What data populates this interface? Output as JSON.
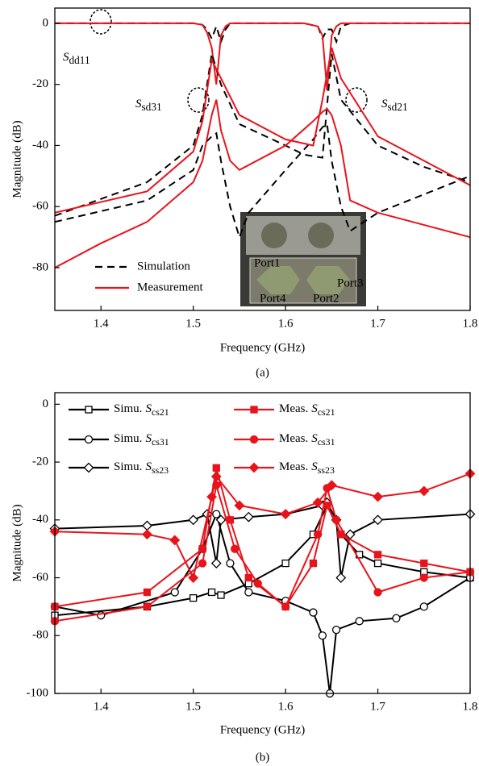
{
  "chart_data": [
    {
      "type": "line",
      "caption": "(a)",
      "x_label": "Frequency (GHz)",
      "y_label": "Magnitude (dB)",
      "xlim": [
        1.35,
        1.8
      ],
      "ylim": [
        -94,
        5
      ],
      "xticks": [
        1.4,
        1.5,
        1.6,
        1.7,
        1.8
      ],
      "yticks": [
        0,
        -20,
        -40,
        -60,
        -80
      ],
      "legend": [
        {
          "label": "Simulation",
          "color": "#000000",
          "dash": true
        },
        {
          "label": "Measurement",
          "color": "#e8131b",
          "dash": false
        }
      ],
      "annotations": [
        {
          "symbol": "S",
          "subscript": "dd11"
        },
        {
          "symbol": "S",
          "subscript": "sd31"
        },
        {
          "symbol": "S",
          "subscript": "sd21"
        }
      ],
      "inset_labels": [
        "Port1",
        "Port2",
        "Port3",
        "Port4"
      ],
      "series": [
        {
          "color": "#000000",
          "dash": true,
          "x": [
            1.35,
            1.5,
            1.51,
            1.515,
            1.52,
            1.525,
            1.53,
            1.535,
            1.54,
            1.62,
            1.635,
            1.64,
            1.645,
            1.65,
            1.655,
            1.66,
            1.67,
            1.8
          ],
          "values": [
            0,
            0,
            -0.5,
            -2,
            -5,
            -1,
            -6,
            -2,
            0,
            0,
            -1,
            -5,
            -2,
            -2,
            -6,
            -1,
            0,
            0
          ]
        },
        {
          "color": "#e8131b",
          "dash": false,
          "x": [
            1.35,
            1.5,
            1.51,
            1.515,
            1.52,
            1.525,
            1.53,
            1.535,
            1.54,
            1.62,
            1.635,
            1.64,
            1.645,
            1.65,
            1.655,
            1.66,
            1.8
          ],
          "values": [
            0,
            0,
            -0.5,
            -3,
            -8,
            -20,
            -4,
            -1,
            0,
            0,
            -1,
            -4,
            -22,
            -4,
            -1,
            0,
            0
          ]
        },
        {
          "color": "#000000",
          "dash": true,
          "x": [
            1.35,
            1.45,
            1.5,
            1.51,
            1.52,
            1.525,
            1.53,
            1.54,
            1.55,
            1.56,
            1.6,
            1.63,
            1.64,
            1.645,
            1.65,
            1.66,
            1.67,
            1.7,
            1.8
          ],
          "values": [
            -65,
            -58,
            -48,
            -40,
            -37,
            -36,
            -45,
            -60,
            -70,
            -62,
            -48,
            -38,
            -34,
            -33,
            -45,
            -60,
            -68,
            -62,
            -50
          ]
        },
        {
          "color": "#000000",
          "dash": true,
          "x": [
            1.35,
            1.45,
            1.5,
            1.51,
            1.515,
            1.52,
            1.53,
            1.55,
            1.6,
            1.62,
            1.64,
            1.65,
            1.66,
            1.7,
            1.75,
            1.8
          ],
          "values": [
            -63,
            -52,
            -40,
            -30,
            -20,
            -10,
            -20,
            -33,
            -40,
            -43,
            -44,
            -10,
            -25,
            -40,
            -47,
            -52
          ]
        },
        {
          "color": "#e8131b",
          "dash": false,
          "x": [
            1.35,
            1.4,
            1.45,
            1.5,
            1.51,
            1.52,
            1.525,
            1.53,
            1.54,
            1.55,
            1.6,
            1.63,
            1.64,
            1.645,
            1.65,
            1.66,
            1.67,
            1.7,
            1.8
          ],
          "values": [
            -80,
            -72,
            -65,
            -52,
            -45,
            -30,
            -25,
            -35,
            -45,
            -48,
            -40,
            -32,
            -29,
            -28,
            -30,
            -40,
            -58,
            -62,
            -70
          ]
        },
        {
          "color": "#e8131b",
          "dash": false,
          "x": [
            1.35,
            1.45,
            1.5,
            1.51,
            1.515,
            1.52,
            1.53,
            1.55,
            1.6,
            1.63,
            1.64,
            1.65,
            1.66,
            1.7,
            1.75,
            1.8
          ],
          "values": [
            -62,
            -55,
            -42,
            -32,
            -22,
            -12,
            -18,
            -30,
            -38,
            -40,
            -25,
            -8,
            -18,
            -37,
            -45,
            -53
          ]
        }
      ]
    },
    {
      "type": "line",
      "caption": "(b)",
      "x_label": "Frequency (GHz)",
      "y_label": "Magnitude (dB)",
      "xlim": [
        1.35,
        1.8
      ],
      "ylim": [
        -100,
        4
      ],
      "xticks": [
        1.4,
        1.5,
        1.6,
        1.7,
        1.8
      ],
      "yticks": [
        0,
        -20,
        -40,
        -60,
        -80,
        -100
      ],
      "series": [
        {
          "label": "Simu.",
          "symbol": "S",
          "subscript": "cs21",
          "color": "#000000",
          "marker": "square",
          "filled": false,
          "x": [
            1.35,
            1.45,
            1.5,
            1.52,
            1.53,
            1.56,
            1.6,
            1.63,
            1.645,
            1.66,
            1.68,
            1.7,
            1.75,
            1.8
          ],
          "values": [
            -73,
            -70,
            -67,
            -65,
            -66,
            -62,
            -55,
            -45,
            -35,
            -45,
            -52,
            -55,
            -58,
            -60
          ]
        },
        {
          "label": "Simu.",
          "symbol": "S",
          "subscript": "cs31",
          "color": "#000000",
          "marker": "circle",
          "filled": false,
          "x": [
            1.35,
            1.4,
            1.48,
            1.51,
            1.525,
            1.54,
            1.56,
            1.6,
            1.63,
            1.64,
            1.648,
            1.655,
            1.68,
            1.72,
            1.75,
            1.8
          ],
          "values": [
            -70,
            -73,
            -65,
            -50,
            -38,
            -55,
            -65,
            -68,
            -72,
            -80,
            -100,
            -78,
            -75,
            -74,
            -70,
            -60
          ]
        },
        {
          "label": "Simu.",
          "symbol": "S",
          "subscript": "ss23",
          "color": "#000000",
          "marker": "diamond",
          "filled": false,
          "x": [
            1.35,
            1.45,
            1.5,
            1.515,
            1.525,
            1.53,
            1.56,
            1.6,
            1.64,
            1.645,
            1.655,
            1.66,
            1.67,
            1.7,
            1.8
          ],
          "values": [
            -43,
            -42,
            -40,
            -38,
            -55,
            -40,
            -39,
            -38,
            -35,
            -34,
            -40,
            -60,
            -45,
            -40,
            -38
          ]
        },
        {
          "label": "Meas.",
          "symbol": "S",
          "subscript": "cs21",
          "color": "#e8131b",
          "marker": "square",
          "filled": true,
          "x": [
            1.35,
            1.45,
            1.51,
            1.525,
            1.54,
            1.56,
            1.6,
            1.63,
            1.645,
            1.66,
            1.7,
            1.75,
            1.8
          ],
          "values": [
            -70,
            -65,
            -50,
            -22,
            -40,
            -60,
            -70,
            -55,
            -35,
            -45,
            -52,
            -55,
            -58
          ]
        },
        {
          "label": "Meas.",
          "symbol": "S",
          "subscript": "cs31",
          "color": "#e8131b",
          "marker": "circle",
          "filled": true,
          "x": [
            1.35,
            1.45,
            1.51,
            1.525,
            1.545,
            1.57,
            1.6,
            1.635,
            1.645,
            1.655,
            1.7,
            1.75,
            1.8
          ],
          "values": [
            -75,
            -70,
            -55,
            -28,
            -50,
            -62,
            -70,
            -45,
            -29,
            -40,
            -65,
            -60,
            -58
          ]
        },
        {
          "label": "Meas.",
          "symbol": "S",
          "subscript": "ss23",
          "color": "#e8131b",
          "marker": "diamond",
          "filled": true,
          "x": [
            1.35,
            1.45,
            1.48,
            1.5,
            1.52,
            1.525,
            1.55,
            1.6,
            1.635,
            1.65,
            1.7,
            1.75,
            1.8
          ],
          "values": [
            -44,
            -45,
            -47,
            -60,
            -32,
            -25,
            -35,
            -38,
            -34,
            -28,
            -32,
            -30,
            -24
          ]
        }
      ]
    }
  ]
}
